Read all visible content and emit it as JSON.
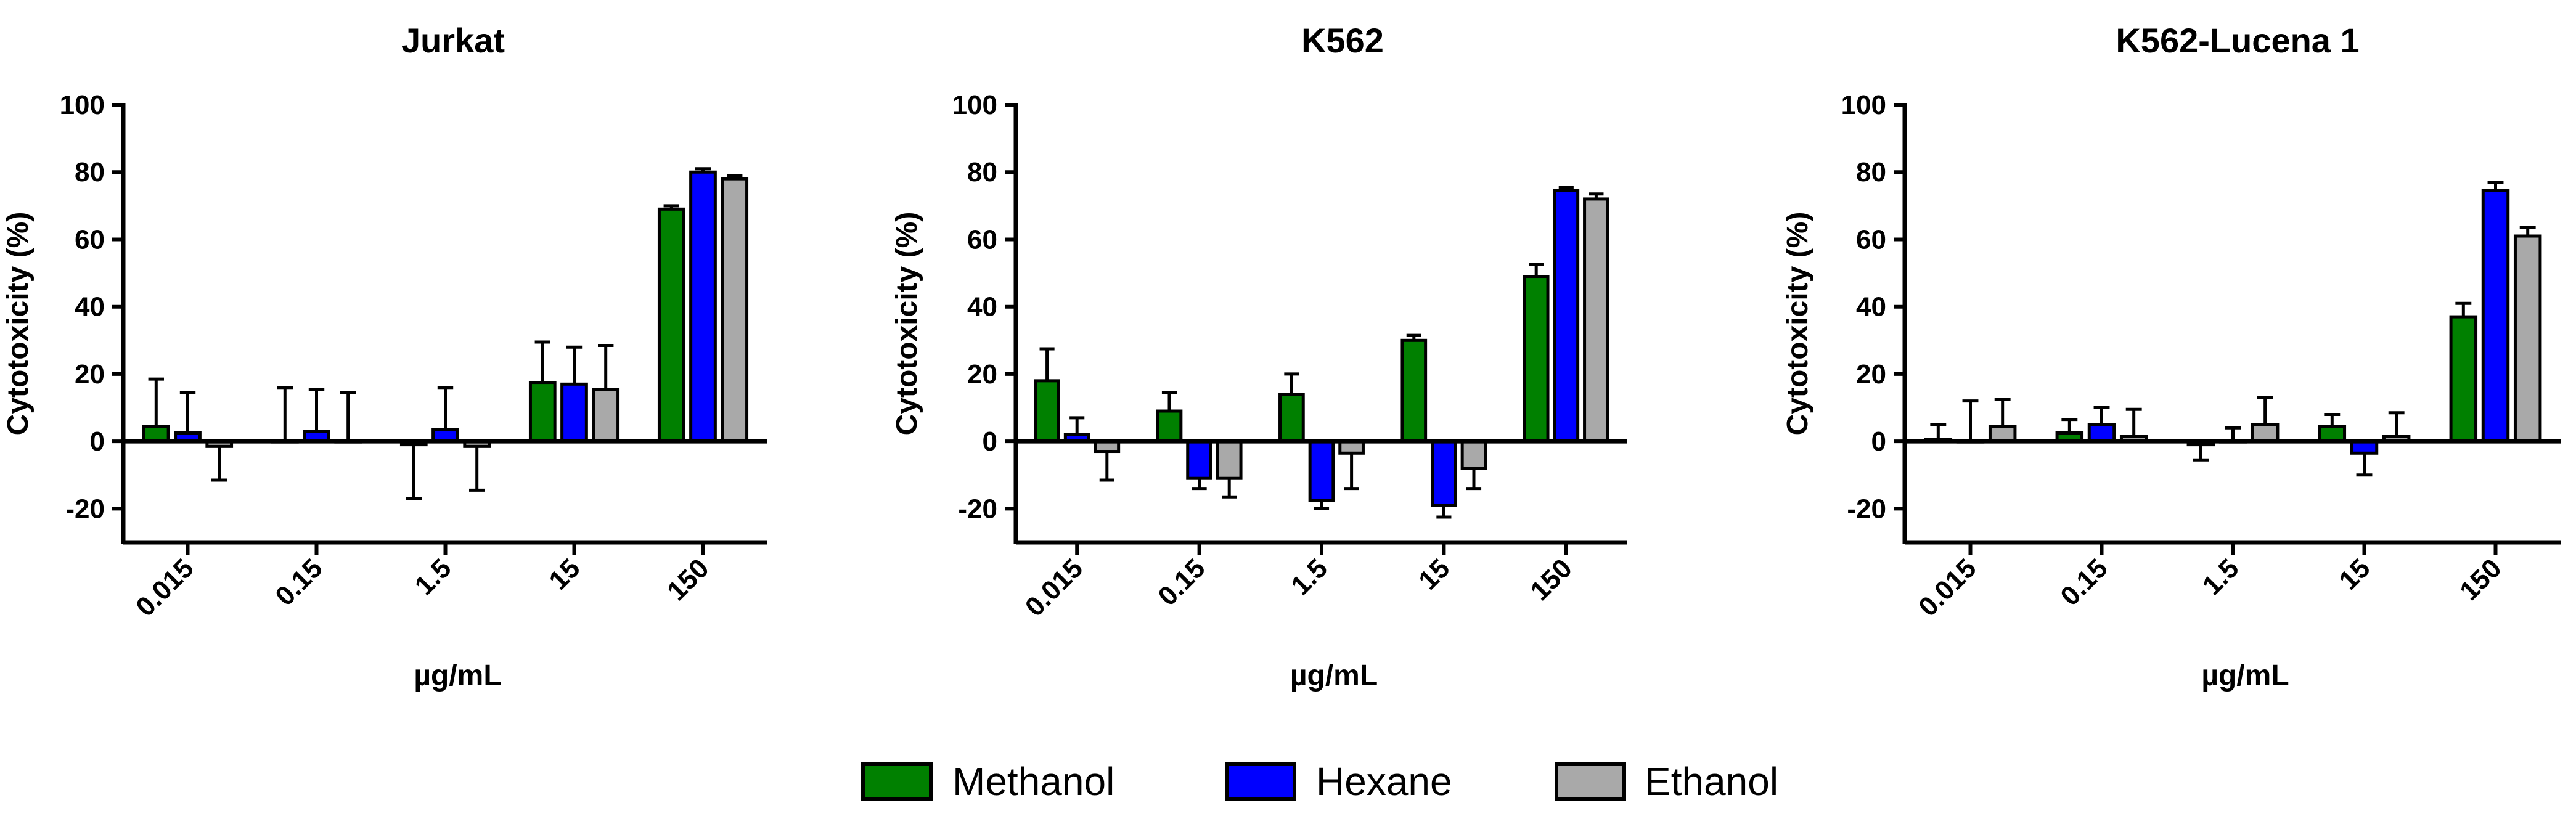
{
  "chart_data": [
    {
      "type": "bar",
      "title": "Jurkat",
      "xlabel": "µg/mL",
      "ylabel": "Cytotoxicity (%)",
      "ylim": [
        -30,
        100
      ],
      "yticks": [
        "-20",
        "0",
        "20",
        "40",
        "60",
        "80",
        "100"
      ],
      "categories": [
        "0.015",
        "0.15",
        "1.5",
        "15",
        "150"
      ],
      "series": [
        {
          "name": "Methanol",
          "values": [
            4.5,
            0,
            -1,
            17.5,
            69
          ],
          "errors": [
            14,
            16,
            16,
            12,
            1
          ]
        },
        {
          "name": "Hexane",
          "values": [
            2.5,
            3,
            3.5,
            17,
            80
          ],
          "errors": [
            12,
            12.5,
            12.5,
            11,
            1
          ]
        },
        {
          "name": "Ethanol",
          "values": [
            -1.5,
            0,
            -1.5,
            15.5,
            78
          ],
          "errors": [
            10,
            14.5,
            13,
            13,
            1
          ]
        }
      ]
    },
    {
      "type": "bar",
      "title": "K562",
      "xlabel": "µg/mL",
      "ylabel": "Cytotoxicity (%)",
      "ylim": [
        -30,
        100
      ],
      "yticks": [
        "-20",
        "0",
        "20",
        "40",
        "60",
        "80",
        "100"
      ],
      "categories": [
        "0.015",
        "0.15",
        "1.5",
        "15",
        "150"
      ],
      "series": [
        {
          "name": "Methanol",
          "values": [
            18,
            9,
            14,
            30,
            49
          ],
          "errors": [
            9.5,
            5.5,
            6,
            1.5,
            3.5
          ]
        },
        {
          "name": "Hexane",
          "values": [
            2,
            -11,
            -17.5,
            -19,
            74.5
          ],
          "errors": [
            5,
            3,
            2.5,
            3.5,
            1
          ]
        },
        {
          "name": "Ethanol",
          "values": [
            -3,
            -11,
            -3.5,
            -8,
            72
          ],
          "errors": [
            8.5,
            5.5,
            10.5,
            6,
            1.5
          ]
        }
      ]
    },
    {
      "type": "bar",
      "title": "K562-Lucena 1",
      "xlabel": "µg/mL",
      "ylabel": "Cytotoxicity (%)",
      "ylim": [
        -30,
        100
      ],
      "yticks": [
        "-20",
        "0",
        "20",
        "40",
        "60",
        "80",
        "100"
      ],
      "categories": [
        "0.015",
        "0.15",
        "1.5",
        "15",
        "150"
      ],
      "series": [
        {
          "name": "Methanol",
          "values": [
            0.5,
            2.5,
            -1,
            4.5,
            37
          ],
          "errors": [
            4.5,
            4,
            4.5,
            3.5,
            4
          ]
        },
        {
          "name": "Hexane",
          "values": [
            0,
            5,
            0,
            -3.5,
            74.5
          ],
          "errors": [
            12,
            5,
            4,
            6.5,
            2.5
          ]
        },
        {
          "name": "Ethanol",
          "values": [
            4.5,
            1.5,
            5,
            1.5,
            61
          ],
          "errors": [
            8,
            8,
            8,
            7,
            2.5
          ]
        }
      ]
    }
  ],
  "legend": [
    {
      "label": "Methanol",
      "color": "#008000"
    },
    {
      "label": "Hexane",
      "color": "#0000ff"
    },
    {
      "label": "Ethanol",
      "color": "#a9a9a9"
    }
  ]
}
